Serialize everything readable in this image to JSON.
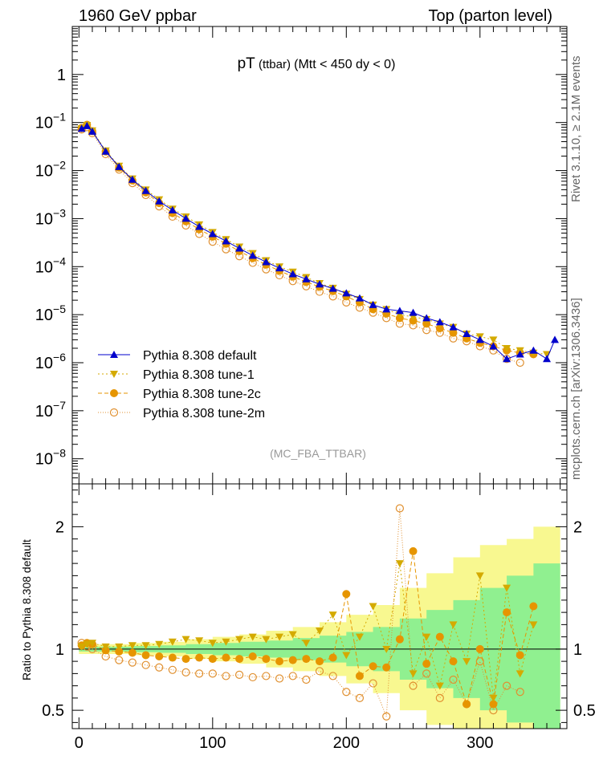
{
  "header": {
    "left": "1960 GeV ppbar",
    "right": "Top (parton level)"
  },
  "plot_title": {
    "main": "pT",
    "sub": " (ttbar) ",
    "cut": "(Mtt < 450 dy < 0)"
  },
  "side_labels": {
    "rivet": "Rivet 3.1.10, ≥ 2.1M events",
    "mcplots": "mcplots.cern.ch [arXiv:1306.3436]"
  },
  "analysis_tag": "(MC_FBA_TTBAR)",
  "ratio_ylabel": "Ratio to Pythia 8.308 default",
  "colors": {
    "default": "#0000cc",
    "tune1": "#d4aa00",
    "tune2c": "#e69500",
    "tune2m": "#e09030",
    "band_inner": "#90f090",
    "band_outer": "#f8f890"
  },
  "chart_data": [
    {
      "type": "scatter",
      "panel": "main",
      "yscale": "log",
      "xlim": [
        -5,
        365
      ],
      "ylim": [
        3e-09,
        10
      ],
      "ytick_labels": [
        "10^-8",
        "10^-7",
        "10^-6",
        "10^-5",
        "10^-4",
        "10^-3",
        "10^-2",
        "10^-1",
        "1"
      ],
      "legend_placement": "left-lower",
      "series": [
        {
          "name": "Pythia 8.308 default",
          "marker": "triangle-up",
          "x": [
            2,
            6,
            10,
            20,
            30,
            40,
            50,
            60,
            70,
            80,
            90,
            100,
            110,
            120,
            130,
            140,
            150,
            160,
            170,
            180,
            190,
            200,
            210,
            220,
            230,
            240,
            250,
            260,
            270,
            280,
            290,
            300,
            310,
            320,
            330,
            340,
            350,
            356
          ],
          "y": [
            0.075,
            0.085,
            0.065,
            0.025,
            0.012,
            0.0065,
            0.0038,
            0.0023,
            0.0015,
            0.001,
            0.00068,
            0.00048,
            0.00034,
            0.00024,
            0.00017,
            0.000125,
            9.3e-05,
            7e-05,
            5.5e-05,
            4.3e-05,
            3.5e-05,
            2.8e-05,
            2.2e-05,
            1.6e-05,
            1.3e-05,
            1.2e-05,
            1.1e-05,
            8.5e-06,
            7e-06,
            5.5e-06,
            4e-06,
            3e-06,
            2.2e-06,
            1.2e-06,
            1.5e-06,
            1.8e-06,
            1.2e-06,
            3e-06
          ]
        },
        {
          "name": "Pythia 8.308 tune-1",
          "marker": "triangle-down",
          "x": [
            2,
            6,
            10,
            20,
            30,
            40,
            50,
            60,
            70,
            80,
            90,
            100,
            110,
            120,
            130,
            140,
            150,
            160,
            170,
            180,
            190,
            200,
            210,
            220,
            230,
            240,
            250,
            260,
            270,
            280,
            290,
            300,
            310,
            320,
            330,
            340,
            350
          ],
          "y": [
            0.075,
            0.088,
            0.068,
            0.026,
            0.0125,
            0.0068,
            0.004,
            0.0025,
            0.0016,
            0.0011,
            0.00075,
            0.00052,
            0.00037,
            0.00026,
            0.00019,
            0.000135,
            0.0001,
            7.8e-05,
            6e-05,
            4.5e-05,
            3.6e-05,
            2.7e-05,
            2.1e-05,
            1.6e-05,
            1.3e-05,
            1e-05,
            9e-06,
            8e-06,
            6.5e-06,
            5.5e-06,
            4e-06,
            3.5e-06,
            3e-06,
            2e-06,
            1.8e-06,
            1.6e-06,
            1.5e-06
          ]
        },
        {
          "name": "Pythia 8.308 tune-2c",
          "marker": "circle",
          "x": [
            2,
            6,
            10,
            20,
            30,
            40,
            50,
            60,
            70,
            80,
            90,
            100,
            110,
            120,
            130,
            140,
            150,
            160,
            170,
            180,
            190,
            200,
            210,
            220,
            230,
            240,
            250,
            260,
            270,
            280,
            290,
            300,
            310,
            320,
            330,
            340
          ],
          "y": [
            0.077,
            0.09,
            0.066,
            0.025,
            0.0115,
            0.0062,
            0.0035,
            0.0021,
            0.0013,
            0.00088,
            0.0006,
            0.00042,
            0.0003,
            0.00021,
            0.00015,
            0.00011,
            8.2e-05,
            6.2e-05,
            4.8e-05,
            3.8e-05,
            3.1e-05,
            2.4e-05,
            1.8e-05,
            1.3e-05,
            1.05e-05,
            8.5e-06,
            7.5e-06,
            6.5e-06,
            5.2e-06,
            4.2e-06,
            3.2e-06,
            2.6e-06,
            2.2e-06,
            1.8e-06,
            1.6e-06,
            1.5e-06
          ]
        },
        {
          "name": "Pythia 8.308 tune-2m",
          "marker": "open-circle",
          "x": [
            2,
            6,
            10,
            20,
            30,
            40,
            50,
            60,
            70,
            80,
            90,
            100,
            110,
            120,
            130,
            140,
            150,
            160,
            170,
            180,
            190,
            200,
            210,
            220,
            230,
            240,
            250,
            260,
            270,
            280,
            290,
            300,
            310,
            320,
            330
          ],
          "y": [
            0.072,
            0.08,
            0.06,
            0.022,
            0.0105,
            0.0055,
            0.0031,
            0.0018,
            0.0011,
            0.00072,
            0.00048,
            0.00033,
            0.00023,
            0.000165,
            0.00012,
            8.8e-05,
            6.6e-05,
            5e-05,
            3.9e-05,
            3e-05,
            2.4e-05,
            1.8e-05,
            1.4e-05,
            1.1e-05,
            8.5e-06,
            6.5e-06,
            6e-06,
            4.8e-06,
            4.2e-06,
            3.2e-06,
            2.8e-06,
            2.2e-06,
            1.8e-06,
            1.2e-06,
            1e-06
          ]
        }
      ]
    },
    {
      "type": "scatter",
      "panel": "ratio",
      "xlim": [
        -5,
        365
      ],
      "ylim": [
        0.35,
        2.35
      ],
      "xticks": [
        0,
        100,
        200,
        300
      ],
      "yticks": [
        0.5,
        1,
        2
      ],
      "ylabel": "Ratio to Pythia 8.308 default",
      "bands": {
        "x": [
          0,
          20,
          40,
          60,
          80,
          100,
          120,
          140,
          160,
          180,
          200,
          220,
          240,
          260,
          280,
          300,
          320,
          340,
          360
        ],
        "inner_half": [
          0.02,
          0.02,
          0.025,
          0.03,
          0.04,
          0.05,
          0.06,
          0.07,
          0.09,
          0.11,
          0.14,
          0.18,
          0.25,
          0.32,
          0.4,
          0.5,
          0.6,
          0.7,
          0.8
        ],
        "outer_half": [
          0.04,
          0.04,
          0.05,
          0.06,
          0.08,
          0.1,
          0.12,
          0.15,
          0.18,
          0.22,
          0.28,
          0.36,
          0.5,
          0.62,
          0.75,
          0.85,
          0.9,
          1.0,
          1.0
        ]
      },
      "series": [
        {
          "name": "Pythia 8.308 tune-1",
          "marker": "triangle-down",
          "x": [
            2,
            6,
            10,
            20,
            30,
            40,
            50,
            60,
            70,
            80,
            90,
            100,
            110,
            120,
            130,
            140,
            150,
            160,
            170,
            180,
            190,
            200,
            210,
            220,
            230,
            240,
            250,
            260,
            270,
            280,
            290,
            300,
            310,
            320,
            330,
            340
          ],
          "y": [
            1.02,
            1.04,
            1.05,
            1.02,
            1.02,
            1.03,
            1.03,
            1.04,
            1.06,
            1.08,
            1.07,
            1.05,
            1.06,
            1.08,
            1.1,
            1.08,
            1.1,
            1.12,
            1.05,
            1.15,
            1.28,
            0.95,
            1.1,
            1.35,
            1.0,
            1.7,
            0.8,
            1.1,
            0.7,
            1.2,
            0.9,
            1.6,
            0.6,
            1.5,
            0.8,
            1.2
          ]
        },
        {
          "name": "Pythia 8.308 tune-2c",
          "marker": "circle",
          "x": [
            2,
            6,
            10,
            20,
            30,
            40,
            50,
            60,
            70,
            80,
            90,
            100,
            110,
            120,
            130,
            140,
            150,
            160,
            170,
            180,
            190,
            200,
            210,
            220,
            230,
            240,
            250,
            260,
            270,
            280,
            290,
            300,
            310,
            320,
            330,
            340
          ],
          "y": [
            1.03,
            1.05,
            1.04,
            0.99,
            0.98,
            0.97,
            0.95,
            0.94,
            0.93,
            0.92,
            0.93,
            0.92,
            0.93,
            0.92,
            0.94,
            0.92,
            0.9,
            0.91,
            0.92,
            0.9,
            0.93,
            1.45,
            0.78,
            0.86,
            0.85,
            1.08,
            1.8,
            0.88,
            1.1,
            0.9,
            0.55,
            1.0,
            0.55,
            1.3,
            0.95,
            1.35
          ]
        },
        {
          "name": "Pythia 8.308 tune-2m",
          "marker": "open-circle",
          "x": [
            2,
            6,
            10,
            20,
            30,
            40,
            50,
            60,
            70,
            80,
            90,
            100,
            110,
            120,
            130,
            140,
            150,
            160,
            170,
            180,
            190,
            200,
            210,
            220,
            230,
            240,
            250,
            260,
            270,
            280,
            290,
            300,
            310,
            320,
            330
          ],
          "y": [
            1.05,
            1.02,
            1.0,
            0.94,
            0.91,
            0.89,
            0.87,
            0.85,
            0.83,
            0.81,
            0.8,
            0.8,
            0.78,
            0.79,
            0.77,
            0.78,
            0.76,
            0.78,
            0.75,
            0.82,
            0.78,
            0.65,
            0.6,
            0.72,
            0.45,
            2.15,
            0.7,
            0.8,
            0.6,
            0.75,
            0.55,
            0.9,
            0.5,
            0.7,
            0.65
          ]
        }
      ]
    }
  ]
}
